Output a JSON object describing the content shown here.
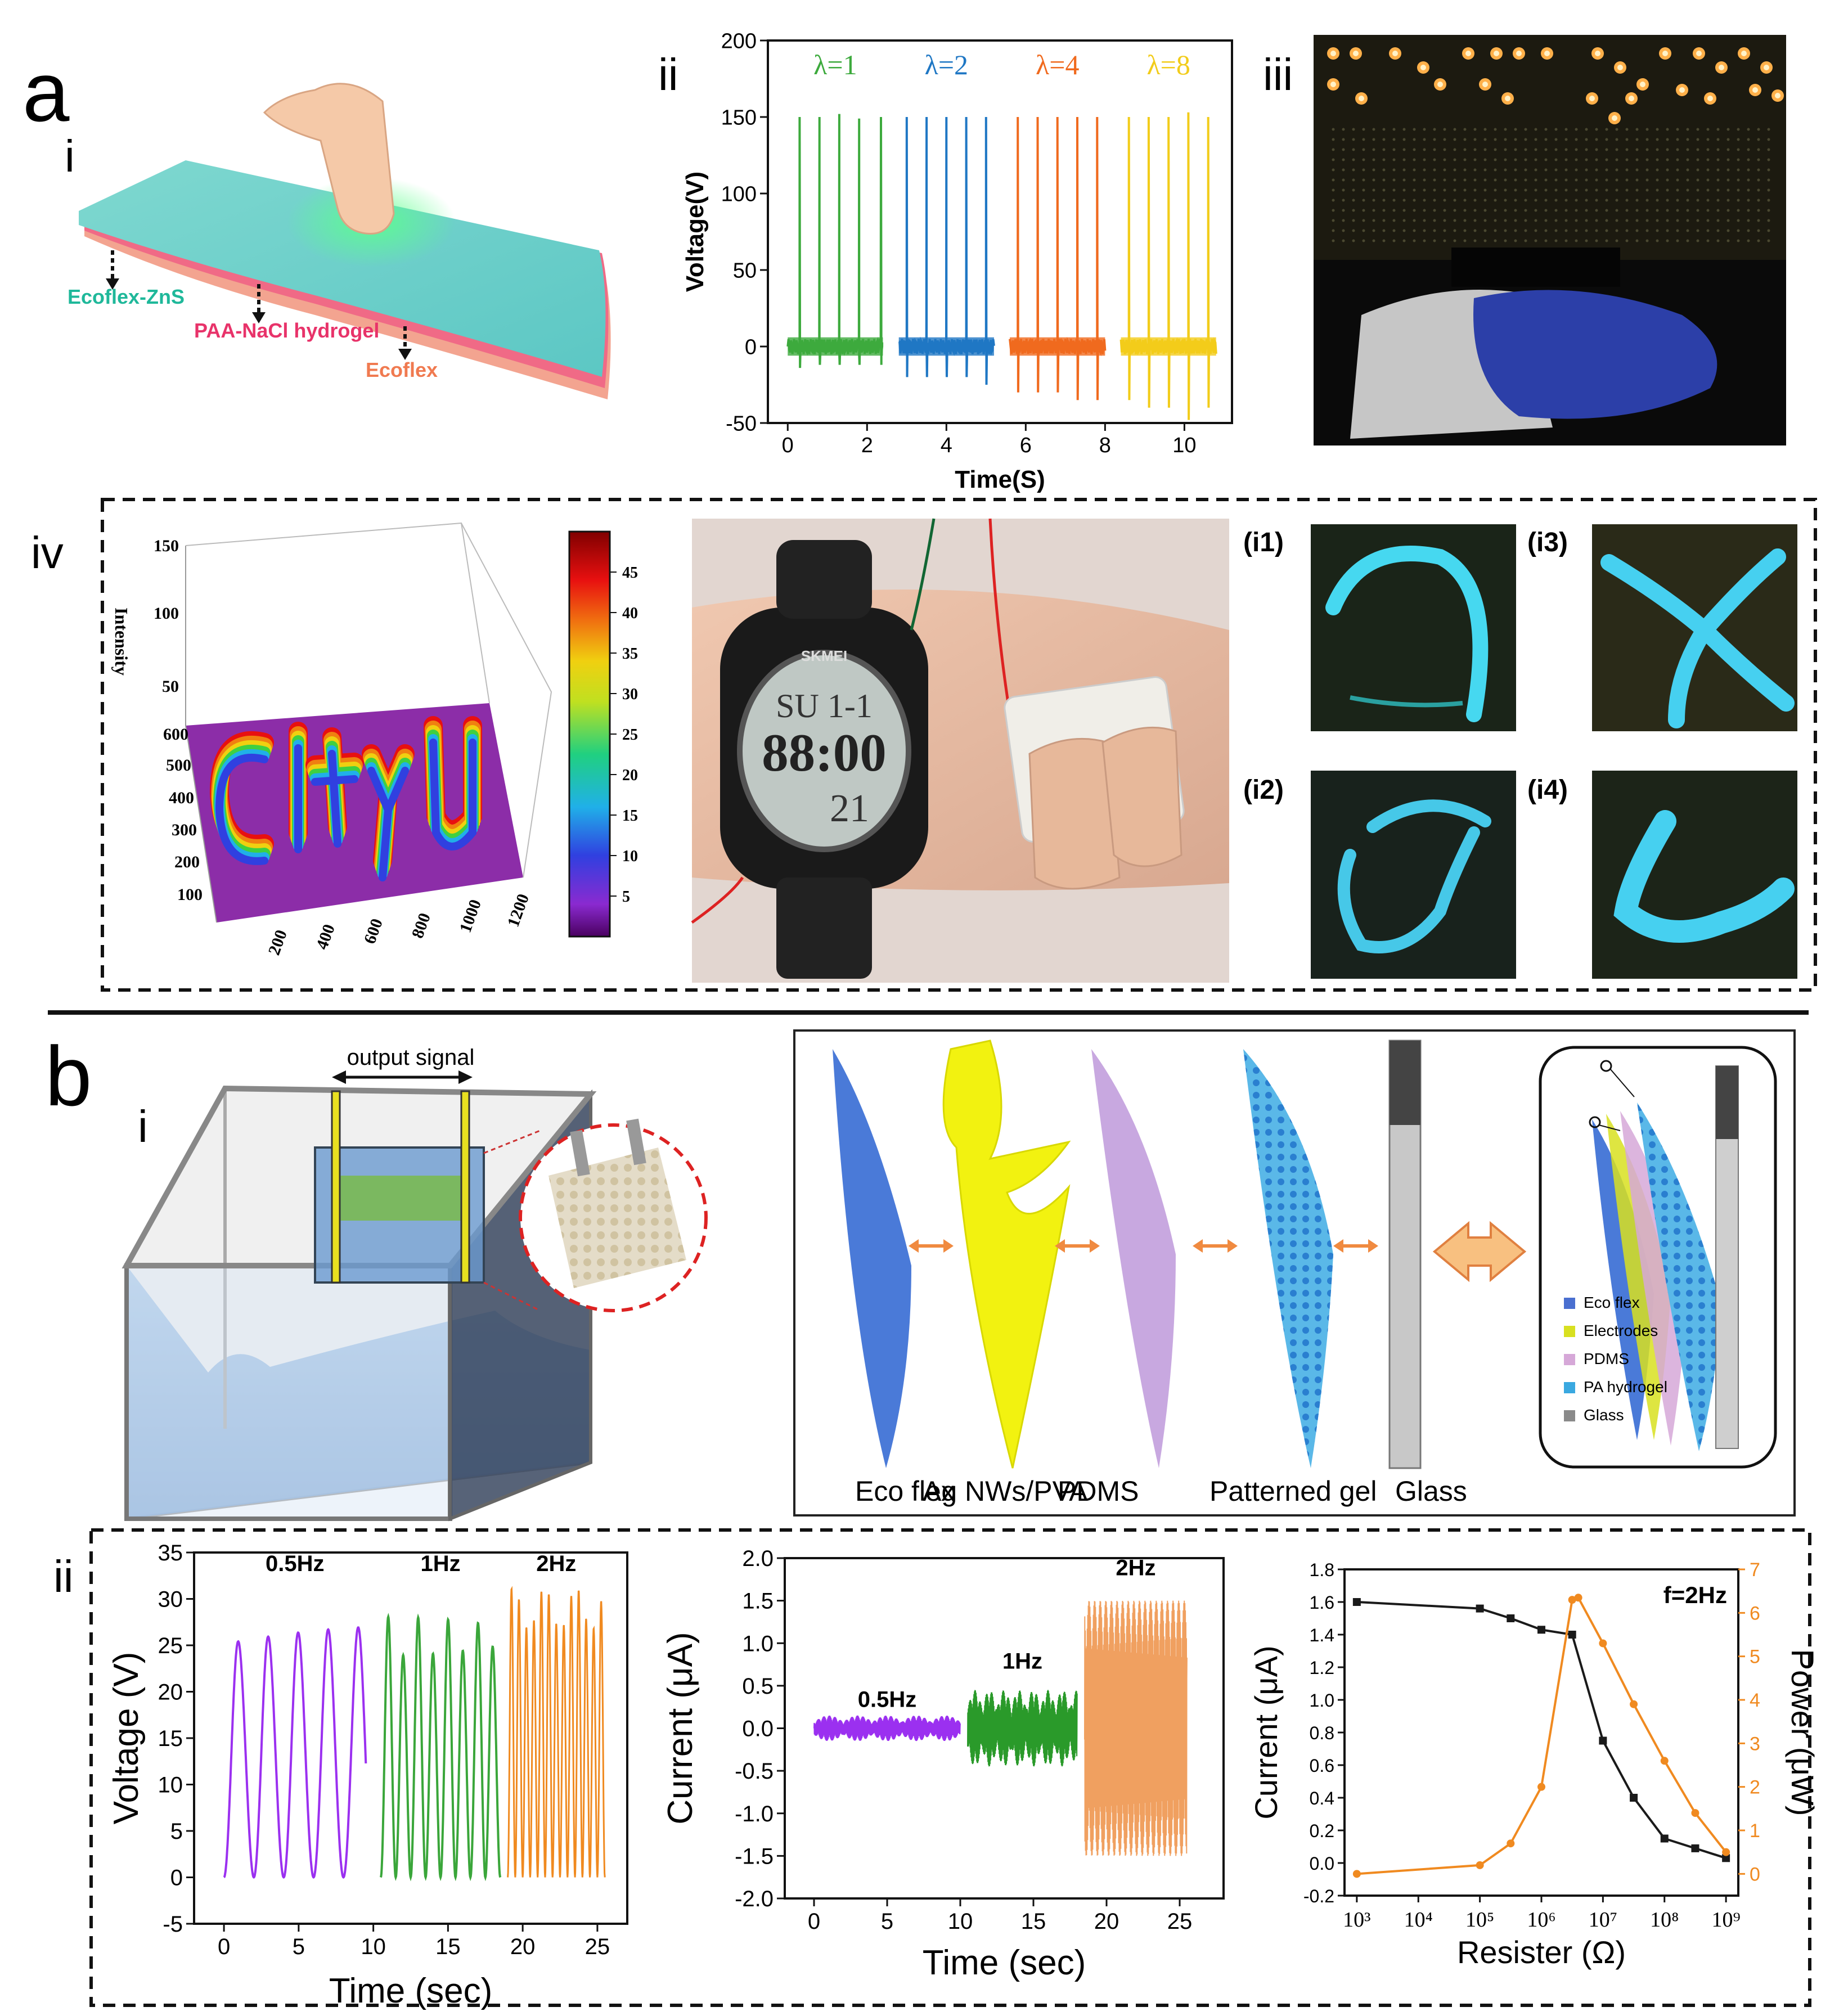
{
  "panel_a": {
    "letter": "a",
    "sub_i": "i",
    "sub_ii": "ii",
    "sub_iii": "iii",
    "sub_iv": "iv",
    "layer_labels": [
      "Ecoflex-ZnS",
      "PAA-NaCl hydrogel",
      "Ecoflex"
    ],
    "inset_labels": [
      "(i1)",
      "(i3)",
      "(i2)",
      "(i4)"
    ],
    "watch_display": [
      "SU 1-1",
      "88:00",
      "21"
    ],
    "watch_brand": "SKMEI"
  },
  "panel_b": {
    "letter": "b",
    "sub_i": "i",
    "sub_ii": "ii",
    "output_signal": "output signal",
    "layer_names": [
      "Eco flex",
      "Ag NWs/PVA",
      "PDMS",
      "Patterned gel",
      "Glass"
    ],
    "legend": [
      {
        "label": "Eco flex",
        "color": "#4a6fd0"
      },
      {
        "label": "Electrodes",
        "color": "#d8e020"
      },
      {
        "label": "PDMS",
        "color": "#d6a8d8"
      },
      {
        "label": "PA hydrogel",
        "color": "#3aa8e0"
      },
      {
        "label": "Glass",
        "color": "#8a8a8a"
      }
    ]
  },
  "chart_data": [
    {
      "id": "a-ii",
      "type": "line",
      "title": "",
      "xlabel": "Time(S)",
      "ylabel": "Voltage(V)",
      "xlim": [
        -0.5,
        11.2
      ],
      "ylim": [
        -50,
        200
      ],
      "xticks": [
        0,
        2,
        4,
        6,
        8,
        10
      ],
      "yticks": [
        -50,
        0,
        50,
        100,
        150,
        200
      ],
      "series": [
        {
          "name": "λ=1",
          "color": "#3daa3d",
          "x_range": [
            0,
            2.4
          ],
          "peaks": [
            0.3,
            0.8,
            1.3,
            1.8,
            2.35
          ],
          "peak_values": [
            150,
            150,
            152,
            149,
            150
          ],
          "min_values": [
            -14,
            -12,
            -12,
            -12,
            -12
          ]
        },
        {
          "name": "λ=2",
          "color": "#1f77c4",
          "x_range": [
            2.8,
            5.2
          ],
          "peaks": [
            3.0,
            3.5,
            4.0,
            4.5,
            5.0
          ],
          "peak_values": [
            150,
            150,
            150,
            150,
            150
          ],
          "min_values": [
            -20,
            -20,
            -20,
            -20,
            -25
          ]
        },
        {
          "name": "λ=4",
          "color": "#f06a1e",
          "x_range": [
            5.6,
            8.0
          ],
          "peaks": [
            5.8,
            6.3,
            6.8,
            7.3,
            7.8
          ],
          "peak_values": [
            150,
            150,
            150,
            150,
            150
          ],
          "min_values": [
            -30,
            -30,
            -30,
            -35,
            -35
          ]
        },
        {
          "name": "λ=8",
          "color": "#f2cc1a",
          "x_range": [
            8.4,
            10.8
          ],
          "peaks": [
            8.6,
            9.1,
            9.6,
            10.1,
            10.6
          ],
          "peak_values": [
            150,
            150,
            150,
            153,
            150
          ],
          "min_values": [
            -35,
            -40,
            -40,
            -48,
            -40
          ]
        }
      ]
    },
    {
      "id": "a-iv",
      "type": "heatmap",
      "zlabel": "Intensity",
      "z_ticks": [
        50,
        100,
        150
      ],
      "y_ticks": [
        100,
        200,
        300,
        400,
        500,
        600
      ],
      "x_ticks": [
        200,
        400,
        600,
        800,
        1000,
        1200
      ],
      "colorbar_ticks": [
        5,
        10,
        15,
        20,
        25,
        30,
        35,
        40,
        45
      ],
      "text_pattern": "CityU"
    },
    {
      "id": "b-ii-voltage",
      "type": "line",
      "xlabel": "Time (sec)",
      "ylabel": "Voltage (V)",
      "xlim": [
        -2,
        27
      ],
      "ylim": [
        -5,
        35
      ],
      "xticks": [
        0,
        5,
        10,
        15,
        20,
        25
      ],
      "yticks": [
        -5,
        0,
        5,
        10,
        15,
        20,
        25,
        30,
        35
      ],
      "series": [
        {
          "name": "0.5Hz",
          "color": "#9b30f0",
          "t_range": [
            0,
            9.5
          ],
          "freq": 0.5,
          "amplitude": 25
        },
        {
          "name": "1Hz",
          "color": "#3aa63a",
          "t_range": [
            10.5,
            18.5
          ],
          "freq": 1,
          "amplitude": 26
        },
        {
          "name": "2Hz",
          "color": "#f08a20",
          "t_range": [
            19,
            25.5
          ],
          "freq": 2,
          "amplitude": 29
        }
      ]
    },
    {
      "id": "b-ii-current",
      "type": "line",
      "xlabel": "Time (sec)",
      "ylabel": "Current (μA)",
      "xlim": [
        -2,
        28
      ],
      "ylim": [
        -2.0,
        2.0
      ],
      "xticks": [
        0,
        5,
        10,
        15,
        20,
        25
      ],
      "yticks": [
        -2.0,
        -1.5,
        -1.0,
        -0.5,
        0.0,
        0.5,
        1.0,
        1.5,
        2.0
      ],
      "series": [
        {
          "name": "0.5Hz",
          "color": "#9b30f0",
          "t_range": [
            0,
            10
          ],
          "amplitude": 0.15
        },
        {
          "name": "1Hz",
          "color": "#2a9a2a",
          "t_range": [
            10.5,
            18
          ],
          "amplitude": 0.45
        },
        {
          "name": "2Hz",
          "color": "#f0a060",
          "t_range": [
            18.5,
            25.5
          ],
          "amplitude": 1.5
        }
      ]
    },
    {
      "id": "b-ii-power",
      "type": "line",
      "annotation": "f=2Hz",
      "xlabel": "Resister (Ω)",
      "ylabel": "Current (μA)",
      "y2label": "Power (μW)",
      "xscale": "log",
      "xlim_exp": [
        2.8,
        9.2
      ],
      "ylim": [
        -0.2,
        1.8
      ],
      "y2lim": [
        -0.5,
        7
      ],
      "xtick_labels": [
        "10³",
        "10⁴",
        "10⁵",
        "10⁶",
        "10⁷",
        "10⁸",
        "10⁹"
      ],
      "xticks_exp": [
        3,
        4,
        5,
        6,
        7,
        8,
        9
      ],
      "yticks": [
        -0.2,
        0.0,
        0.2,
        0.4,
        0.6,
        0.8,
        1.0,
        1.2,
        1.4,
        1.6,
        1.8
      ],
      "y2ticks": [
        0,
        1,
        2,
        3,
        4,
        5,
        6,
        7
      ],
      "series": [
        {
          "name": "Current",
          "color": "#1a1a1a",
          "axis": "left",
          "x_exp": [
            3,
            5,
            5.5,
            6,
            6.5,
            7,
            7.5,
            8,
            8.5,
            9
          ],
          "values": [
            1.6,
            1.56,
            1.5,
            1.43,
            1.4,
            0.75,
            0.4,
            0.15,
            0.09,
            0.03
          ]
        },
        {
          "name": "Power",
          "color": "#f08a20",
          "axis": "right",
          "x_exp": [
            3,
            5,
            5.5,
            6,
            6.5,
            6.6,
            7,
            7.5,
            8,
            8.5,
            9
          ],
          "values": [
            0.0,
            0.2,
            0.7,
            2.0,
            6.3,
            6.35,
            5.3,
            3.9,
            2.6,
            1.4,
            0.5
          ]
        }
      ]
    }
  ]
}
